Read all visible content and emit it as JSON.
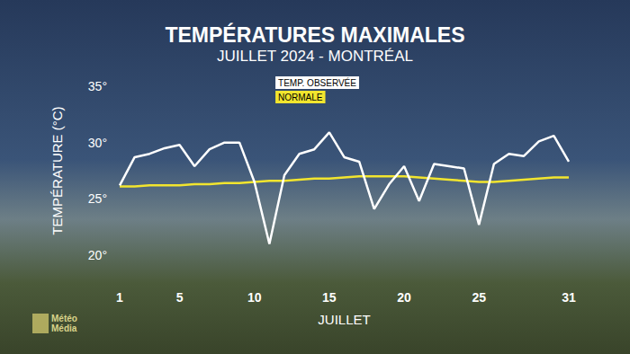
{
  "chart_data": {
    "type": "line",
    "title": "TEMPÉRATURES MAXIMALES",
    "subtitle": "JUILLET 2024 - MONTRÉAL",
    "x_label": "JUILLET",
    "y_label": "TEMPÉRATURE (°C)",
    "source": "Météo\nMédia",
    "x": [
      1,
      2,
      3,
      4,
      5,
      6,
      7,
      8,
      9,
      10,
      11,
      12,
      13,
      14,
      15,
      16,
      17,
      18,
      19,
      20,
      21,
      22,
      23,
      24,
      25,
      26,
      27,
      28,
      29,
      30,
      31
    ],
    "series": [
      {
        "name": "TEMP. OBSERVÉE",
        "color": "#ffffff",
        "values": [
          26.2,
          28.7,
          29.0,
          29.5,
          29.8,
          27.9,
          29.4,
          30.0,
          30.0,
          26.5,
          21.0,
          27.1,
          29.0,
          29.4,
          30.9,
          28.7,
          28.3,
          24.1,
          26.3,
          27.9,
          24.8,
          28.1,
          27.9,
          27.7,
          22.7,
          28.1,
          29.0,
          28.8,
          30.1,
          30.6,
          28.3
        ]
      },
      {
        "name": "NORMALE",
        "color": "#f2e52e",
        "values": [
          26.1,
          26.1,
          26.2,
          26.2,
          26.2,
          26.3,
          26.3,
          26.4,
          26.4,
          26.5,
          26.6,
          26.6,
          26.7,
          26.8,
          26.8,
          26.9,
          27.0,
          27.0,
          27.0,
          27.0,
          26.9,
          26.8,
          26.7,
          26.6,
          26.5,
          26.5,
          26.6,
          26.7,
          26.8,
          26.9,
          26.9
        ]
      }
    ],
    "xlim": [
      1,
      31
    ],
    "xticks": [
      1,
      5,
      10,
      15,
      20,
      25,
      31
    ],
    "ylim": [
      20,
      35
    ],
    "yticks": [
      {
        "value": 20,
        "label": "20°"
      },
      {
        "value": 25,
        "label": "25°"
      },
      {
        "value": 30,
        "label": "30°"
      },
      {
        "value": 35,
        "label": "35°"
      }
    ],
    "grid": false,
    "legend": "top",
    "marker": "none",
    "line_style": "solid"
  }
}
